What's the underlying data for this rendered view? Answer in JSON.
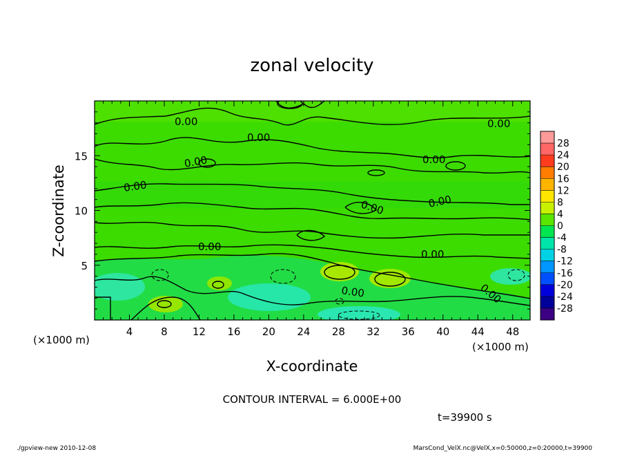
{
  "chart_data": {
    "type": "heatmap",
    "title": "zonal velocity",
    "xlabel": "X-coordinate",
    "ylabel": "Z-coordinate",
    "x_unit": "(×1000 m)",
    "z_unit": "(×1000 m)",
    "xlim": [
      0,
      50
    ],
    "ylim": [
      0,
      20
    ],
    "x_ticks": [
      "4",
      "8",
      "12",
      "16",
      "20",
      "24",
      "28",
      "32",
      "36",
      "40",
      "44",
      "48"
    ],
    "x_tick_values": [
      4,
      8,
      12,
      16,
      20,
      24,
      28,
      32,
      36,
      40,
      44,
      48
    ],
    "y_ticks": [
      "5",
      "10",
      "15"
    ],
    "y_tick_values": [
      5,
      10,
      15
    ],
    "colorbar": {
      "labels": [
        "28",
        "24",
        "20",
        "16",
        "12",
        "8",
        "4",
        "0",
        "-4",
        "-8",
        "-12",
        "-16",
        "-20",
        "-24",
        "-28"
      ],
      "colors": [
        "#ff9a9a",
        "#ff6666",
        "#ff3c1e",
        "#ff7d00",
        "#ffb400",
        "#ffe600",
        "#c8f000",
        "#5ae600",
        "#00e650",
        "#00e6aa",
        "#00d2e6",
        "#0096ff",
        "#0050ff",
        "#0000dc",
        "#00009a",
        "#3c0082"
      ]
    },
    "contour_labels": [
      "0.00",
      "0.00",
      "0.00",
      "0.00",
      "0.00",
      "0.00",
      "0.00",
      "0.00",
      "0.00",
      "0.00",
      "0.00",
      "0.00"
    ],
    "contour_interval_text": "CONTOUR INTERVAL = 6.000E+00",
    "time_text": "t=39900 s"
  },
  "footer": {
    "left": "./gpview-new  2010-12-08",
    "right": "MarsCond_VelX.nc@VelX,x=0:50000,z=0:20000,t=39900"
  }
}
